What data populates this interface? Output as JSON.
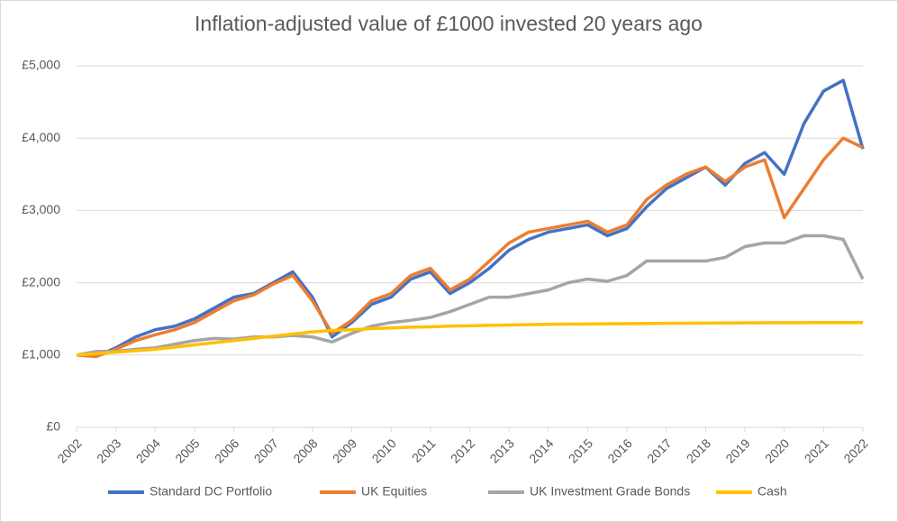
{
  "chart_data": {
    "type": "line",
    "title": "Inflation-adjusted value of £1000 invested 20 years ago",
    "x": [
      2002,
      2002.5,
      2003,
      2003.5,
      2004,
      2004.5,
      2005,
      2005.5,
      2006,
      2006.5,
      2007,
      2007.5,
      2008,
      2008.5,
      2009,
      2009.5,
      2010,
      2010.5,
      2011,
      2011.5,
      2012,
      2012.5,
      2013,
      2013.5,
      2014,
      2014.5,
      2015,
      2015.5,
      2016,
      2016.5,
      2017,
      2017.5,
      2018,
      2018.5,
      2019,
      2019.5,
      2020,
      2020.5,
      2021,
      2021.5,
      2022
    ],
    "series": [
      {
        "name": "Standard DC Portfolio",
        "color": "#4472c4",
        "values": [
          1000,
          980,
          1100,
          1250,
          1350,
          1400,
          1500,
          1650,
          1800,
          1850,
          2000,
          2150,
          1800,
          1250,
          1450,
          1700,
          1800,
          2050,
          2150,
          1850,
          2000,
          2200,
          2450,
          2600,
          2700,
          2750,
          2800,
          2650,
          2750,
          3050,
          3300,
          3450,
          3600,
          3350,
          3650,
          3800,
          3500,
          4200,
          4650,
          4800,
          3850
        ]
      },
      {
        "name": "UK Equities",
        "color": "#ed7d31",
        "values": [
          1000,
          980,
          1080,
          1200,
          1280,
          1350,
          1450,
          1600,
          1750,
          1830,
          1980,
          2100,
          1750,
          1300,
          1480,
          1750,
          1850,
          2100,
          2200,
          1900,
          2050,
          2300,
          2550,
          2700,
          2750,
          2800,
          2850,
          2700,
          2800,
          3150,
          3350,
          3500,
          3600,
          3400,
          3600,
          3700,
          2900,
          3300,
          3700,
          4000,
          3870
        ]
      },
      {
        "name": "UK Investment Grade Bonds",
        "color": "#a5a5a5",
        "values": [
          1000,
          1050,
          1050,
          1080,
          1100,
          1150,
          1200,
          1230,
          1220,
          1250,
          1250,
          1270,
          1250,
          1180,
          1300,
          1400,
          1450,
          1480,
          1520,
          1600,
          1700,
          1800,
          1800,
          1850,
          1900,
          2000,
          2050,
          2020,
          2100,
          2300,
          2300,
          2300,
          2300,
          2350,
          2500,
          2550,
          2550,
          2650,
          2650,
          2600,
          2050
        ]
      },
      {
        "name": "Cash",
        "color": "#ffc000",
        "values": [
          1000,
          1020,
          1040,
          1060,
          1080,
          1110,
          1140,
          1170,
          1200,
          1230,
          1260,
          1290,
          1320,
          1340,
          1350,
          1365,
          1375,
          1385,
          1390,
          1400,
          1405,
          1410,
          1415,
          1420,
          1425,
          1428,
          1430,
          1432,
          1434,
          1436,
          1438,
          1440,
          1442,
          1444,
          1445,
          1446,
          1447,
          1448,
          1449,
          1450,
          1450
        ]
      }
    ],
    "xlim": [
      2002,
      2022
    ],
    "xticks": [
      2002,
      2003,
      2004,
      2005,
      2006,
      2007,
      2008,
      2009,
      2010,
      2011,
      2012,
      2013,
      2014,
      2015,
      2016,
      2017,
      2018,
      2019,
      2020,
      2021,
      2022
    ],
    "ylim": [
      0,
      5000
    ],
    "yticks": [
      {
        "value": 0,
        "label": "£0"
      },
      {
        "value": 1000,
        "label": "£1,000"
      },
      {
        "value": 2000,
        "label": "£2,000"
      },
      {
        "value": 3000,
        "label": "£3,000"
      },
      {
        "value": 4000,
        "label": "£4,000"
      },
      {
        "value": 5000,
        "label": "£5,000"
      }
    ],
    "grid": true
  }
}
